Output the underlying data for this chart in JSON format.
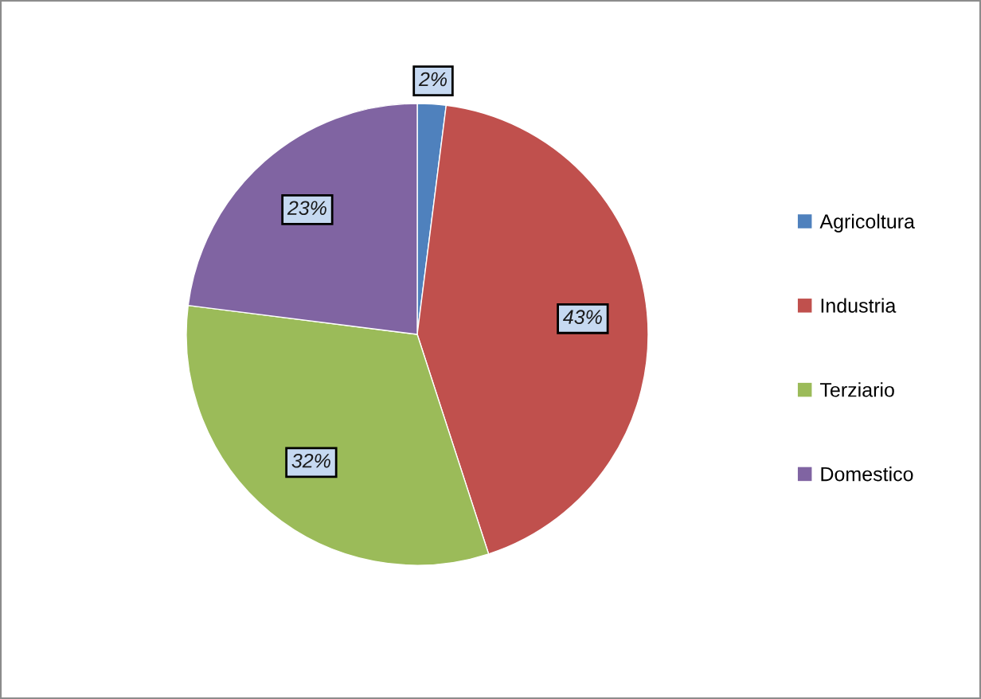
{
  "chart_data": {
    "type": "pie",
    "categories": [
      "Agricoltura",
      "Industria",
      "Terziario",
      "Domestico"
    ],
    "values": [
      2,
      43,
      32,
      23
    ],
    "colors": [
      "#4f81bd",
      "#c0504d",
      "#9bbb59",
      "#8064a2"
    ],
    "value_labels": [
      "2%",
      "43%",
      "32%",
      "23%"
    ],
    "legend": "right"
  }
}
